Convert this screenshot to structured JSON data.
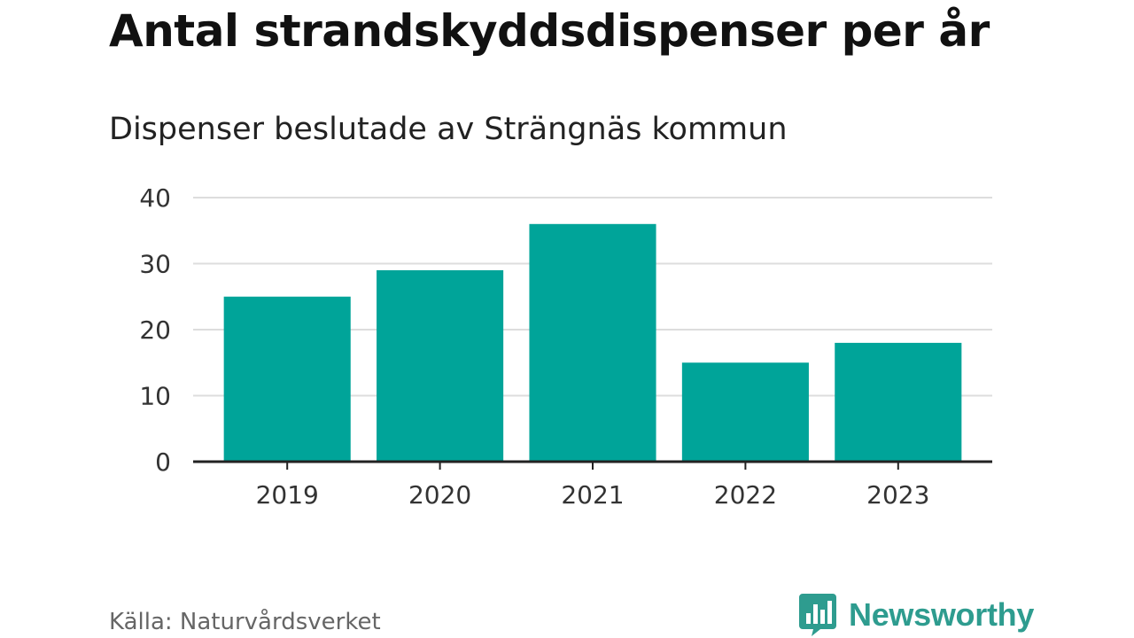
{
  "header": {
    "title": "Antal strandskyddsdispenser per år",
    "subtitle": "Dispenser beslutade av Strängnäs kommun"
  },
  "footer": {
    "source": "Källa: Naturvårdsverket",
    "brand": "Newsworthy",
    "brand_icon": "bar-chart-icon"
  },
  "colors": {
    "bar": "#00A499",
    "brand": "#2E9C8F",
    "grid": "#dddddd",
    "axis": "#222222"
  },
  "chart_data": {
    "type": "bar",
    "title": "Antal strandskyddsdispenser per år",
    "subtitle": "Dispenser beslutade av Strängnäs kommun",
    "categories": [
      "2019",
      "2020",
      "2021",
      "2022",
      "2023"
    ],
    "values": [
      25,
      29,
      36,
      15,
      18
    ],
    "xlabel": "",
    "ylabel": "",
    "ylim": [
      0,
      40
    ],
    "yticks": [
      "0",
      "10",
      "20",
      "30",
      "40"
    ],
    "grid": true,
    "legend": "none"
  }
}
